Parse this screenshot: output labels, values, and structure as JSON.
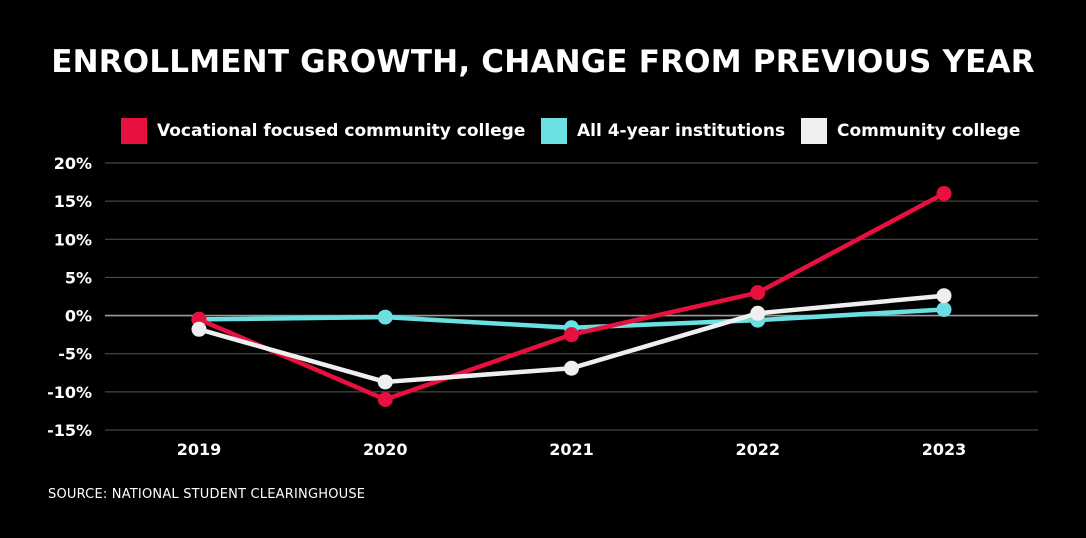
{
  "chart_data": {
    "type": "line",
    "title": "ENROLLMENT GROWTH, CHANGE FROM PREVIOUS YEAR",
    "categories": [
      "2019",
      "2020",
      "2021",
      "2022",
      "2023"
    ],
    "ylim": [
      -15,
      20
    ],
    "yticks": [
      20,
      15,
      10,
      5,
      0,
      -5,
      -10,
      -15
    ],
    "ytick_labels": [
      "20%",
      "15%",
      "10%",
      "5%",
      "0%",
      "-5%",
      "-10%",
      "-15%"
    ],
    "grid": true,
    "legend_position": "top",
    "series": [
      {
        "name": "Vocational focused community college",
        "color": "#e8103f",
        "values": [
          -0.5,
          -11,
          -2.5,
          3,
          16
        ]
      },
      {
        "name": "All 4-year institutions",
        "color": "#6be0e3",
        "values": [
          -0.5,
          -0.2,
          -1.6,
          -0.6,
          0.8
        ]
      },
      {
        "name": "Community college",
        "color": "#efefef",
        "values": [
          -1.8,
          -8.7,
          -6.9,
          0.3,
          2.6
        ]
      }
    ]
  },
  "source": "SOURCE: NATIONAL STUDENT CLEARINGHOUSE"
}
